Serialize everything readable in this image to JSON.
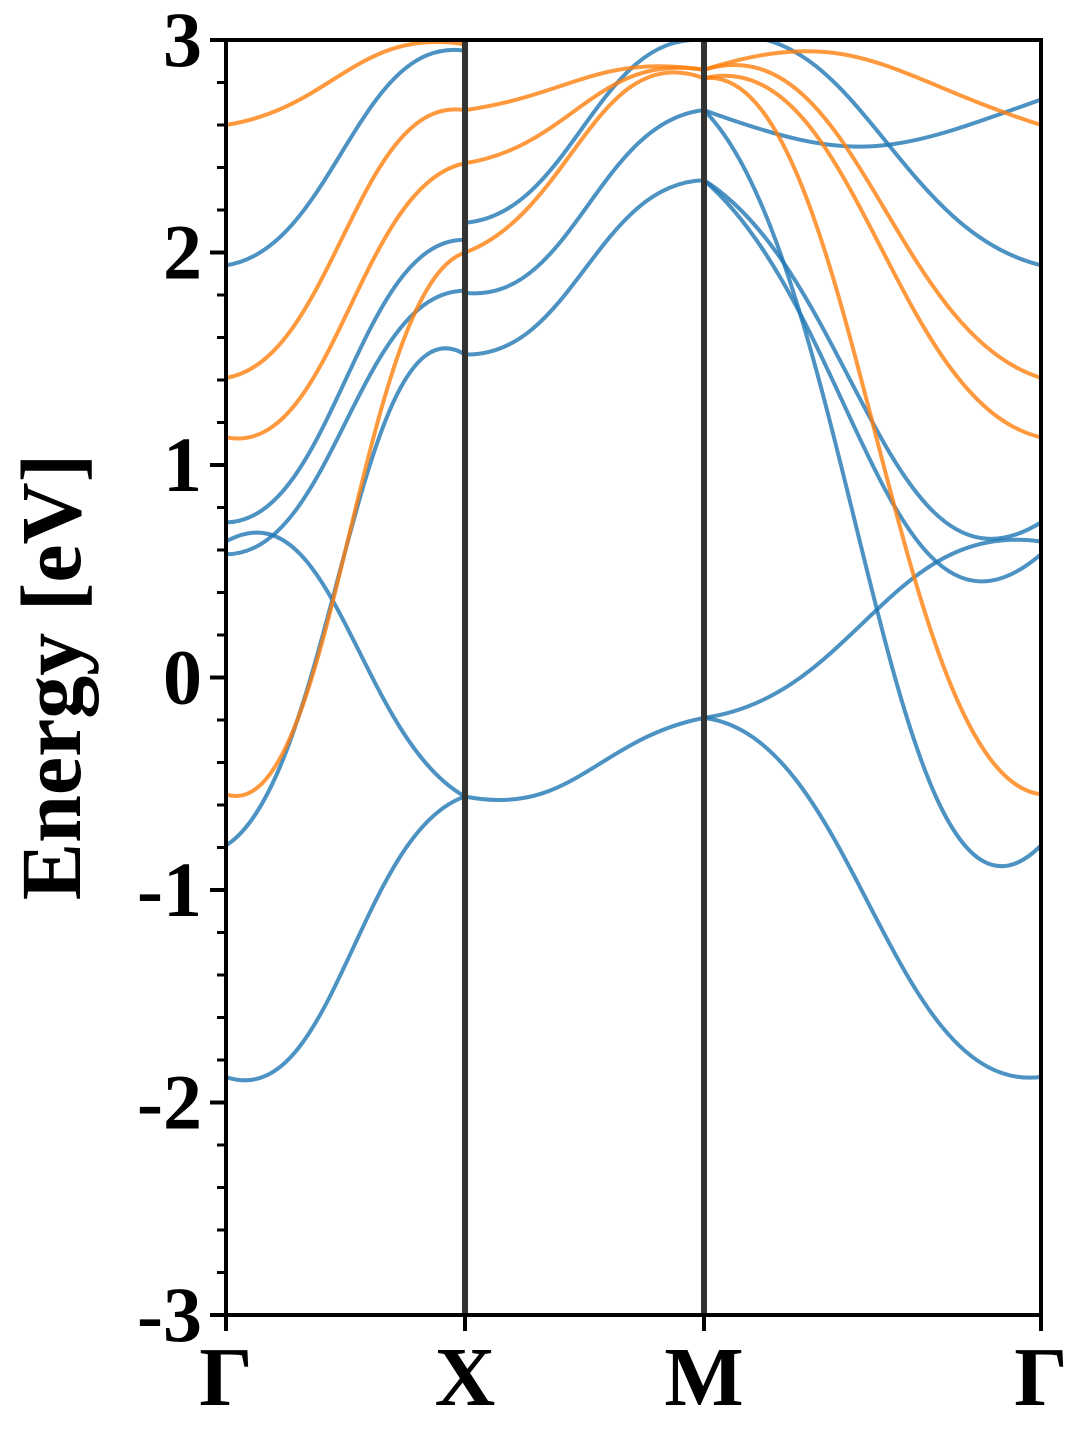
{
  "chart_data": {
    "type": "line",
    "title": "",
    "xlabel": "",
    "ylabel": "Energy [eV]",
    "ylim": [
      -3,
      3
    ],
    "yticks": [
      {
        "value": -3,
        "label": "-3"
      },
      {
        "value": -2,
        "label": "-2"
      },
      {
        "value": -1,
        "label": "-1"
      },
      {
        "value": 0,
        "label": "0"
      },
      {
        "value": 1,
        "label": "1"
      },
      {
        "value": 2,
        "label": "2"
      },
      {
        "value": 3,
        "label": "3"
      }
    ],
    "yminor_step": 0.2,
    "xlim": [
      0,
      3.41
    ],
    "xticks": [
      {
        "value": 0,
        "label": "Γ"
      },
      {
        "value": 1.0,
        "label": "X"
      },
      {
        "value": 2.0,
        "label": "M"
      },
      {
        "value": 3.41,
        "label": "Γ"
      }
    ],
    "vlines": [
      1.0,
      2.0
    ],
    "grid": false,
    "legend": "none",
    "colors": {
      "blue": "#1f77b4",
      "orange": "#ff7f0e",
      "vline": "#333333"
    },
    "series": [
      {
        "color": "blue",
        "x": [
          0,
          0.5,
          1.0
        ],
        "y": [
          -1.88,
          -1.35,
          -0.56
        ]
      },
      {
        "color": "blue",
        "x": [
          1.0,
          1.5,
          2.0
        ],
        "y": [
          -0.56,
          -0.45,
          -0.19
        ]
      },
      {
        "color": "blue",
        "x": [
          2.0,
          2.7,
          3.41
        ],
        "y": [
          -0.19,
          -1.1,
          -1.88
        ]
      },
      {
        "color": "blue",
        "x": [
          0,
          0.5,
          1.0
        ],
        "y": [
          0.64,
          0.25,
          -0.56
        ]
      },
      {
        "color": "blue",
        "x": [
          2.0,
          2.7,
          3.41
        ],
        "y": [
          -0.19,
          0.3,
          0.64
        ]
      },
      {
        "color": "blue",
        "x": [
          0,
          0.5,
          1.0
        ],
        "y": [
          -0.79,
          0.6,
          1.52
        ]
      },
      {
        "color": "blue",
        "x": [
          0,
          0.5,
          1.0
        ],
        "y": [
          0.58,
          1.2,
          1.82
        ]
      },
      {
        "color": "blue",
        "x": [
          0,
          0.5,
          1.0
        ],
        "y": [
          0.73,
          1.4,
          2.06
        ]
      },
      {
        "color": "blue",
        "x": [
          0,
          0.5,
          1.0
        ],
        "y": [
          1.94,
          2.5,
          2.95
        ]
      },
      {
        "color": "blue",
        "x": [
          1.0,
          1.5,
          2.0
        ],
        "y": [
          1.52,
          1.92,
          2.34
        ]
      },
      {
        "color": "blue",
        "x": [
          1.0,
          1.5,
          2.0
        ],
        "y": [
          1.81,
          2.2,
          2.67
        ]
      },
      {
        "color": "blue",
        "x": [
          1.0,
          1.5,
          2.0
        ],
        "y": [
          2.14,
          2.6,
          3.0
        ]
      },
      {
        "color": "blue",
        "x": [
          2.0,
          2.7,
          3.41
        ],
        "y": [
          2.34,
          1.0,
          0.58
        ]
      },
      {
        "color": "blue",
        "x": [
          2.0,
          2.7,
          3.41
        ],
        "y": [
          2.34,
          1.2,
          0.73
        ]
      },
      {
        "color": "blue",
        "x": [
          2.0,
          2.7,
          3.41
        ],
        "y": [
          2.67,
          0.4,
          -0.79
        ]
      },
      {
        "color": "blue",
        "x": [
          2.0,
          2.7,
          3.41
        ],
        "y": [
          2.67,
          2.5,
          2.72
        ]
      },
      {
        "color": "blue",
        "x": [
          2.0,
          2.7,
          3.41
        ],
        "y": [
          3.0,
          2.6,
          1.94
        ]
      },
      {
        "color": "orange",
        "x": [
          0,
          0.5,
          1.0
        ],
        "y": [
          -0.55,
          0.6,
          2.0
        ]
      },
      {
        "color": "orange",
        "x": [
          0,
          0.5,
          1.0
        ],
        "y": [
          1.13,
          1.7,
          2.42
        ]
      },
      {
        "color": "orange",
        "x": [
          0,
          0.5,
          1.0
        ],
        "y": [
          1.41,
          2.1,
          2.67
        ]
      },
      {
        "color": "orange",
        "x": [
          0,
          0.5,
          1.0
        ],
        "y": [
          2.6,
          2.85,
          2.98
        ]
      },
      {
        "color": "orange",
        "x": [
          1.0,
          1.5,
          2.0
        ],
        "y": [
          2.0,
          2.55,
          2.82
        ]
      },
      {
        "color": "orange",
        "x": [
          1.0,
          1.5,
          2.0
        ],
        "y": [
          2.42,
          2.7,
          2.86
        ]
      },
      {
        "color": "orange",
        "x": [
          1.0,
          1.5,
          2.0
        ],
        "y": [
          2.67,
          2.82,
          2.86
        ]
      },
      {
        "color": "orange",
        "x": [
          2.0,
          2.7,
          3.41
        ],
        "y": [
          2.82,
          1.2,
          -0.55
        ]
      },
      {
        "color": "orange",
        "x": [
          2.0,
          2.7,
          3.41
        ],
        "y": [
          2.82,
          2.1,
          1.13
        ]
      },
      {
        "color": "orange",
        "x": [
          2.0,
          2.7,
          3.41
        ],
        "y": [
          2.86,
          2.3,
          1.41
        ]
      },
      {
        "color": "orange",
        "x": [
          2.0,
          2.7,
          3.41
        ],
        "y": [
          2.86,
          2.9,
          2.6
        ]
      }
    ]
  }
}
